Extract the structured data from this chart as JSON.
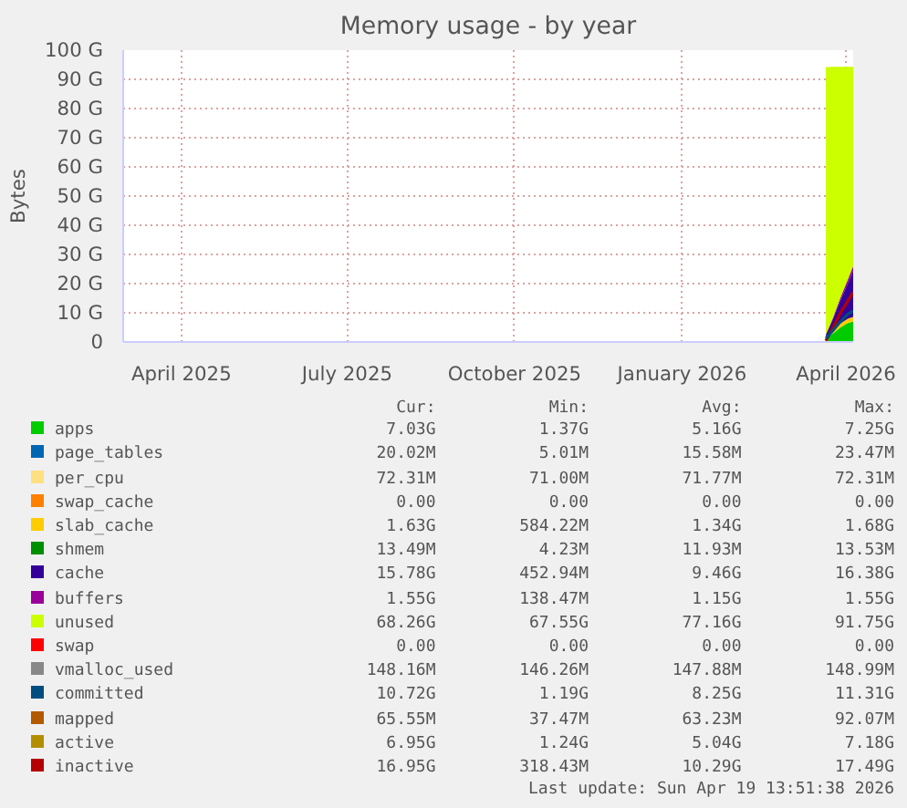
{
  "chart_data": {
    "type": "area",
    "title": "Memory usage - by year",
    "ylabel": "Bytes",
    "stacked": true,
    "x": [
      "2026-04-04",
      "2026-04-08",
      "2026-04-12",
      "2026-04-16",
      "2026-04-19"
    ],
    "xlim": [
      "2025-03-14",
      "2026-04-19"
    ],
    "xticks": [
      {
        "value": "2025-04-15",
        "label": "April 2025"
      },
      {
        "value": "2025-07-15",
        "label": "July 2025"
      },
      {
        "value": "2025-10-15",
        "label": "October 2025"
      },
      {
        "value": "2026-01-15",
        "label": "January 2026"
      },
      {
        "value": "2026-04-15",
        "label": "April 2026"
      }
    ],
    "ylim": [
      0,
      100
    ],
    "yticks": [
      0,
      {
        "value": 10,
        "label": "10 G"
      },
      {
        "value": 20,
        "label": "20 G"
      },
      {
        "value": 30,
        "label": "30 G"
      },
      {
        "value": 40,
        "label": "40 G"
      },
      {
        "value": 50,
        "label": "50 G"
      },
      {
        "value": 60,
        "label": "60 G"
      },
      {
        "value": 70,
        "label": "70 G"
      },
      {
        "value": 80,
        "label": "80 G"
      },
      {
        "value": 90,
        "label": "90 G"
      },
      {
        "value": 100,
        "label": "100 G"
      }
    ],
    "grid": true,
    "legend": "bottom",
    "series": [
      {
        "name": "apps",
        "color": "#00cc00",
        "values": [
          1.4,
          3,
          5,
          6.5,
          7.0
        ]
      },
      {
        "name": "page_tables",
        "color": "#0066b3",
        "values": [
          null,
          null,
          null,
          null,
          null
        ]
      },
      {
        "name": "per_cpu",
        "color": "#ffe080",
        "values": [
          null,
          null,
          null,
          null,
          null
        ]
      },
      {
        "name": "swap_cache",
        "color": "#ff8000",
        "values": [
          null,
          null,
          null,
          null,
          null
        ]
      },
      {
        "name": "slab_cache",
        "color": "#ffcc00",
        "values": [
          0.6,
          1.0,
          1.3,
          1.5,
          1.6
        ]
      },
      {
        "name": "shmem",
        "color": "#008f00",
        "values": [
          null,
          null,
          null,
          null,
          null
        ]
      },
      {
        "name": "cache",
        "color": "#330099",
        "values": [
          0.5,
          4,
          8,
          12,
          15.8
        ]
      },
      {
        "name": "buffers",
        "color": "#990099",
        "values": [
          0.1,
          0.5,
          0.9,
          1.3,
          1.6
        ]
      },
      {
        "name": "unused",
        "color": "#ccff00",
        "values": [
          91.6,
          85.8,
          79.1,
          73.0,
          68.3
        ]
      },
      {
        "name": "swap",
        "color": "#ff0000",
        "values": [
          null,
          null,
          null,
          null,
          null
        ]
      },
      {
        "name": "vmalloc_used",
        "type": "line",
        "color": "#888888",
        "values": [
          null,
          null,
          null,
          null,
          null
        ]
      },
      {
        "name": "committed",
        "type": "line",
        "color": "#004d80",
        "values": [
          1.2,
          4,
          7,
          9.5,
          10.7
        ]
      },
      {
        "name": "mapped",
        "type": "line",
        "color": "#b35900",
        "values": [
          null,
          null,
          null,
          null,
          null
        ]
      },
      {
        "name": "active",
        "type": "line",
        "color": "#b38f00",
        "values": [
          null,
          null,
          null,
          null,
          null
        ]
      },
      {
        "name": "inactive",
        "type": "line",
        "color": "#b30000",
        "values": [
          0.4,
          5,
          10,
          14,
          17.0
        ]
      }
    ],
    "annotations": [
      "Cur:",
      "Min:",
      "Avg:",
      "Max:",
      "7.03G",
      "1.37G",
      "5.16G",
      "7.25G",
      "20.02M",
      "5.01M",
      "15.58M",
      "23.47M",
      "72.31M",
      "71.00M",
      "71.77M",
      "72.31M",
      "0.00",
      "0.00",
      "0.00",
      "0.00",
      "1.63G",
      "584.22M",
      "1.34G",
      "1.68G",
      "13.49M",
      "4.23M",
      "11.93M",
      "13.53M",
      "15.78G",
      "452.94M",
      "9.46G",
      "16.38G",
      "1.55G",
      "138.47M",
      "1.15G",
      "1.55G",
      "68.26G",
      "67.55G",
      "77.16G",
      "91.75G",
      "0.00",
      "0.00",
      "0.00",
      "0.00",
      "148.16M",
      "146.26M",
      "147.88M",
      "148.99M",
      "10.72G",
      "1.19G",
      "8.25G",
      "11.31G",
      "65.55M",
      "37.47M",
      "63.23M",
      "92.07M",
      "6.95G",
      "1.24G",
      "5.04G",
      "7.18G",
      "16.95G",
      "318.43M",
      "10.29G",
      "17.49G",
      "Last update: Sun Apr 19 13:51:38 2026"
    ]
  }
}
